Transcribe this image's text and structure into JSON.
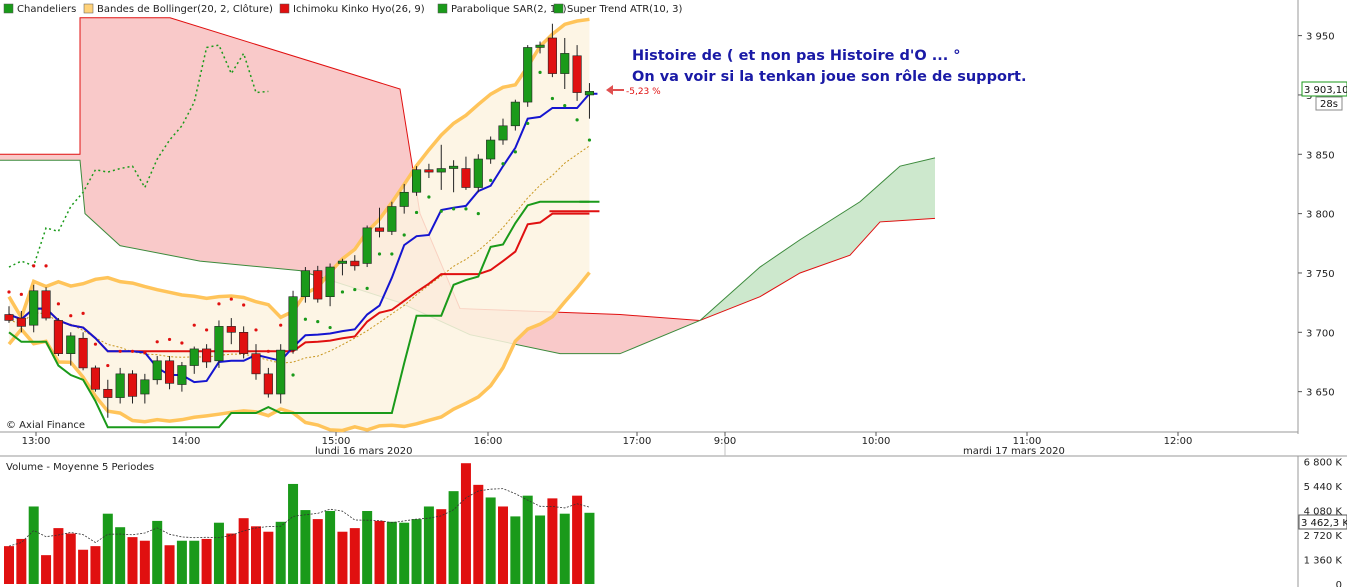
{
  "legend": [
    {
      "label": "Chandeliers",
      "color": "#1a9a1a"
    },
    {
      "label": "Bandes de Bollinger(20, 2, Clôture)",
      "color": "#ffd27a"
    },
    {
      "label": "Ichimoku Kinko Hyo(26, 9)",
      "color": "#e01010"
    },
    {
      "label": "Parabolique SAR(2, 10)",
      "color": "#1a9a1a"
    },
    {
      "label": "Super Trend ATR(10, 3)",
      "color": "#1a9a1a"
    }
  ],
  "annotation": {
    "line1": "Histoire de ( et non pas Histoire d'O ... °",
    "line2": "On va voir si la tenkan joue son rôle de support.",
    "pct": "-5,23 %"
  },
  "price_box": {
    "value": "3 903,10",
    "countdown": "28s"
  },
  "volume_box": {
    "value": "3 462,3 K"
  },
  "watermark": "© Axial Finance",
  "volume_title": "Volume  - Moyenne 5 Periodes",
  "dates": {
    "day1": "lundi 16 mars 2020",
    "day2": "mardi 17 mars 2020"
  },
  "colors": {
    "up": "#1a9a1a",
    "down": "#e01010",
    "kijun": "#e01010",
    "tenkan": "#1515d0",
    "bollinger": "#ffc45a"
  },
  "chart_data": {
    "type": "candlestick",
    "price_axis": {
      "ticks": [
        "3 650",
        "3 700",
        "3 750",
        "3 800",
        "3 850",
        "3 900",
        "3 950"
      ],
      "values": [
        3650,
        3700,
        3750,
        3800,
        3850,
        3900,
        3950
      ],
      "ylim": [
        3616,
        3980
      ]
    },
    "time_axis": {
      "ticks": [
        "13:00",
        "14:00",
        "15:00",
        "16:00",
        "17:00",
        "9:00",
        "10:00",
        "11:00",
        "12:00"
      ]
    },
    "candles": [
      {
        "o": 3715,
        "h": 3722,
        "l": 3708,
        "c": 3710
      },
      {
        "o": 3712,
        "h": 3718,
        "l": 3700,
        "c": 3705
      },
      {
        "o": 3706,
        "h": 3740,
        "l": 3700,
        "c": 3735
      },
      {
        "o": 3735,
        "h": 3738,
        "l": 3710,
        "c": 3712
      },
      {
        "o": 3710,
        "h": 3712,
        "l": 3680,
        "c": 3682
      },
      {
        "o": 3682,
        "h": 3700,
        "l": 3672,
        "c": 3697
      },
      {
        "o": 3695,
        "h": 3700,
        "l": 3668,
        "c": 3670
      },
      {
        "o": 3670,
        "h": 3672,
        "l": 3650,
        "c": 3652
      },
      {
        "o": 3652,
        "h": 3660,
        "l": 3628,
        "c": 3645
      },
      {
        "o": 3645,
        "h": 3670,
        "l": 3640,
        "c": 3665
      },
      {
        "o": 3665,
        "h": 3668,
        "l": 3640,
        "c": 3646
      },
      {
        "o": 3648,
        "h": 3665,
        "l": 3640,
        "c": 3660
      },
      {
        "o": 3660,
        "h": 3680,
        "l": 3656,
        "c": 3676
      },
      {
        "o": 3676,
        "h": 3680,
        "l": 3652,
        "c": 3657
      },
      {
        "o": 3656,
        "h": 3675,
        "l": 3650,
        "c": 3672
      },
      {
        "o": 3672,
        "h": 3688,
        "l": 3665,
        "c": 3686
      },
      {
        "o": 3686,
        "h": 3690,
        "l": 3670,
        "c": 3675
      },
      {
        "o": 3676,
        "h": 3710,
        "l": 3670,
        "c": 3705
      },
      {
        "o": 3705,
        "h": 3712,
        "l": 3690,
        "c": 3700
      },
      {
        "o": 3700,
        "h": 3705,
        "l": 3678,
        "c": 3682
      },
      {
        "o": 3682,
        "h": 3690,
        "l": 3660,
        "c": 3665
      },
      {
        "o": 3665,
        "h": 3670,
        "l": 3645,
        "c": 3648
      },
      {
        "o": 3648,
        "h": 3690,
        "l": 3640,
        "c": 3685
      },
      {
        "o": 3685,
        "h": 3735,
        "l": 3682,
        "c": 3730
      },
      {
        "o": 3730,
        "h": 3755,
        "l": 3725,
        "c": 3752
      },
      {
        "o": 3752,
        "h": 3756,
        "l": 3725,
        "c": 3728
      },
      {
        "o": 3730,
        "h": 3758,
        "l": 3722,
        "c": 3755
      },
      {
        "o": 3758,
        "h": 3762,
        "l": 3748,
        "c": 3760
      },
      {
        "o": 3760,
        "h": 3765,
        "l": 3752,
        "c": 3756
      },
      {
        "o": 3758,
        "h": 3790,
        "l": 3755,
        "c": 3788
      },
      {
        "o": 3788,
        "h": 3805,
        "l": 3780,
        "c": 3785
      },
      {
        "o": 3785,
        "h": 3810,
        "l": 3782,
        "c": 3806
      },
      {
        "o": 3806,
        "h": 3825,
        "l": 3800,
        "c": 3818
      },
      {
        "o": 3818,
        "h": 3840,
        "l": 3815,
        "c": 3837
      },
      {
        "o": 3837,
        "h": 3842,
        "l": 3830,
        "c": 3835
      },
      {
        "o": 3835,
        "h": 3858,
        "l": 3820,
        "c": 3838
      },
      {
        "o": 3838,
        "h": 3845,
        "l": 3818,
        "c": 3840
      },
      {
        "o": 3838,
        "h": 3848,
        "l": 3820,
        "c": 3822
      },
      {
        "o": 3822,
        "h": 3850,
        "l": 3818,
        "c": 3846
      },
      {
        "o": 3846,
        "h": 3865,
        "l": 3842,
        "c": 3862
      },
      {
        "o": 3862,
        "h": 3880,
        "l": 3858,
        "c": 3874
      },
      {
        "o": 3874,
        "h": 3896,
        "l": 3870,
        "c": 3894
      },
      {
        "o": 3894,
        "h": 3942,
        "l": 3890,
        "c": 3940
      },
      {
        "o": 3940,
        "h": 3945,
        "l": 3935,
        "c": 3942
      },
      {
        "o": 3948,
        "h": 3960,
        "l": 3915,
        "c": 3918
      },
      {
        "o": 3918,
        "h": 3948,
        "l": 3905,
        "c": 3935
      },
      {
        "o": 3933,
        "h": 3942,
        "l": 3895,
        "c": 3902
      },
      {
        "o": 3900,
        "h": 3910,
        "l": 3880,
        "c": 3903
      }
    ],
    "volume_axis": {
      "ticks": [
        "0",
        "1 360 K",
        "2 720 K",
        "4 080 K",
        "5 440 K",
        "6 800 K"
      ],
      "values": [
        0,
        1360,
        2720,
        4080,
        5440,
        6800
      ],
      "ylim": [
        0,
        7100
      ]
    },
    "volumes": [
      2100,
      2500,
      4300,
      1600,
      3100,
      2800,
      1900,
      2100,
      3900,
      3150,
      2600,
      2400,
      3500,
      2150,
      2400,
      2400,
      2500,
      3400,
      2800,
      3650,
      3200,
      2900,
      3450,
      5550,
      4100,
      3600,
      4050,
      2900,
      3100,
      4050,
      3500,
      3450,
      3400,
      3600,
      4300,
      4150,
      5150,
      6700,
      5500,
      4800,
      4300,
      3750,
      4900,
      3800,
      4750,
      3900,
      4900,
      3950
    ],
    "volume_up": [
      false,
      false,
      true,
      false,
      false,
      false,
      false,
      false,
      true,
      true,
      false,
      false,
      true,
      false,
      true,
      true,
      false,
      true,
      false,
      false,
      false,
      false,
      true,
      true,
      true,
      false,
      true,
      false,
      false,
      true,
      false,
      true,
      true,
      true,
      true,
      false,
      true,
      false,
      false,
      true,
      false,
      true,
      true,
      true,
      false,
      true,
      false,
      true
    ]
  }
}
